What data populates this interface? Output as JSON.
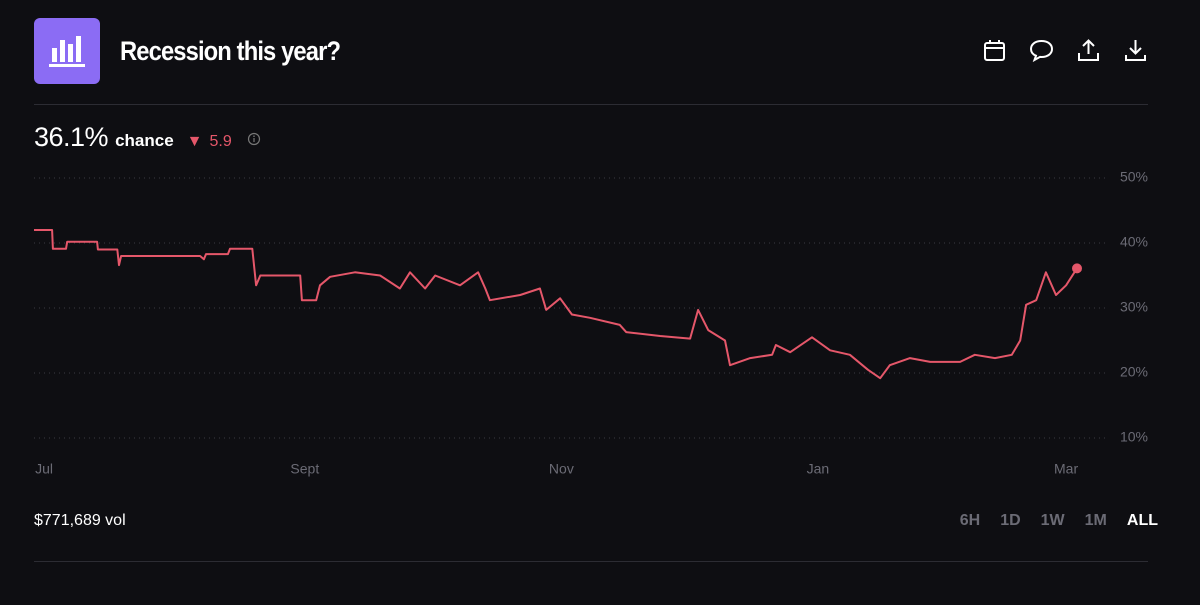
{
  "header": {
    "title": "Recession this year?"
  },
  "summary": {
    "chance": "36.1%",
    "chance_label": "chance",
    "change": 5.9
  },
  "volume": "$771,689 vol",
  "ranges": [
    "6H",
    "1D",
    "1W",
    "1M",
    "ALL"
  ],
  "selected_range": "ALL",
  "chart_data": {
    "type": "line",
    "color": "#e5576a",
    "x": [
      -2.4,
      1.9,
      2.1,
      5.2,
      5.5,
      12.6,
      12.8,
      17.4,
      17.8,
      18.3,
      37.1,
      38,
      38.5,
      43.7,
      44.2,
      49.5,
      50.4,
      51.4,
      60.9,
      61.3,
      64.7,
      65.6,
      68,
      73.9,
      79.9,
      84.6,
      87,
      90.6,
      93,
      98.9,
      103.2,
      104.9,
      106,
      113.2,
      117.9,
      119.4,
      122.7,
      125.5,
      129.8,
      136.9,
      138.4,
      146.5,
      153.6,
      155.5,
      157.9,
      161.9,
      163.1,
      167.9,
      173.1,
      174,
      177.4,
      182.6,
      186.9,
      191.6,
      195.9,
      198.8,
      201.1,
      205.9,
      210.7,
      217.8,
      221.3,
      226.1,
      230.1,
      232.1,
      233.5,
      235.9,
      238.2,
      240.6,
      243,
      245.6
    ],
    "values": [
      42,
      42,
      39.1,
      39.1,
      40.2,
      40.2,
      39,
      39,
      36.6,
      38,
      38,
      37.5,
      38.3,
      38.3,
      39.1,
      39.1,
      33.5,
      35,
      35,
      31.2,
      31.2,
      33.5,
      34.8,
      35.5,
      35,
      33,
      35.5,
      33,
      35,
      33.5,
      35.5,
      33,
      31.2,
      32,
      33,
      29.7,
      31.5,
      29,
      28.5,
      27.4,
      26.3,
      25.7,
      25.3,
      29.7,
      26.6,
      25,
      21.2,
      22.3,
      22.8,
      24.3,
      23.2,
      25.5,
      23.5,
      22.8,
      20.5,
      19.2,
      21.2,
      22.3,
      21.7,
      21.7,
      22.8,
      22.3,
      22.8,
      25,
      30.5,
      31.2,
      35.5,
      32,
      33.5,
      36.1
    ],
    "xlim": [
      -2.4,
      245.6
    ],
    "xticks": [
      {
        "value": 0,
        "label": "Jul"
      },
      {
        "value": 62,
        "label": "Sept"
      },
      {
        "value": 123,
        "label": "Nov"
      },
      {
        "value": 184,
        "label": "Jan"
      },
      {
        "value": 243,
        "label": "Mar"
      }
    ],
    "ylim": [
      10,
      50
    ],
    "yticks": [
      {
        "value": 10,
        "label": "10%"
      },
      {
        "value": 20,
        "label": "20%"
      },
      {
        "value": 30,
        "label": "30%"
      },
      {
        "value": 40,
        "label": "40%"
      },
      {
        "value": 50,
        "label": "50%"
      }
    ],
    "grid": true
  }
}
